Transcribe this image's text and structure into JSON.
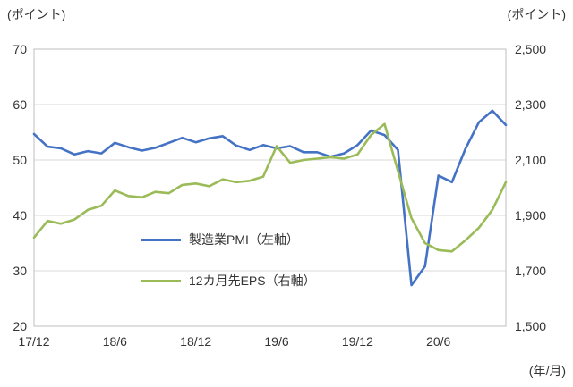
{
  "chart_data": {
    "type": "line",
    "title": "",
    "left_axis_label": "(ポイント)",
    "right_axis_label": "(ポイント)",
    "x_axis_unit": "(年/月)",
    "grid": "horizontal",
    "legend_position": "inside-center-left",
    "categories": [
      "17/12",
      "18/1",
      "18/2",
      "18/3",
      "18/4",
      "18/5",
      "18/6",
      "18/7",
      "18/8",
      "18/9",
      "18/10",
      "18/11",
      "18/12",
      "19/1",
      "19/2",
      "19/3",
      "19/4",
      "19/5",
      "19/6",
      "19/7",
      "19/8",
      "19/9",
      "19/10",
      "19/11",
      "19/12",
      "20/1",
      "20/2",
      "20/3",
      "20/4",
      "20/5",
      "20/6",
      "20/7",
      "20/8",
      "20/9",
      "20/10",
      "20/11"
    ],
    "x_tick_labels": [
      "17/12",
      "18/6",
      "18/12",
      "19/6",
      "19/12",
      "20/6"
    ],
    "left_axis": {
      "min": 20,
      "max": 70,
      "ticks": [
        20,
        30,
        40,
        50,
        60,
        70
      ],
      "tick_labels": [
        "20",
        "30",
        "40",
        "50",
        "60",
        "70"
      ]
    },
    "right_axis": {
      "min": 1500,
      "max": 2500,
      "ticks": [
        1500,
        1700,
        1900,
        2100,
        2300,
        2500
      ],
      "tick_labels": [
        "1,500",
        "1,700",
        "1,900",
        "2,100",
        "2,300",
        "2,500"
      ]
    },
    "series": [
      {
        "name": "製造業PMI（左軸）",
        "axis": "left",
        "color": "#4472C4",
        "values": [
          54.7,
          52.4,
          52.1,
          51.0,
          51.6,
          51.2,
          53.1,
          52.3,
          51.7,
          52.2,
          53.1,
          54.0,
          53.2,
          53.9,
          54.3,
          52.6,
          51.8,
          52.7,
          52.1,
          52.5,
          51.4,
          51.4,
          50.6,
          51.2,
          52.7,
          55.3,
          54.5,
          51.8,
          27.4,
          30.8,
          47.2,
          46.0,
          52.0,
          56.8,
          58.9,
          56.3
        ]
      },
      {
        "name": "12カ月先EPS（右軸）",
        "axis": "right",
        "color": "#9BBB59",
        "values": [
          1820,
          1880,
          1870,
          1885,
          1920,
          1935,
          1990,
          1970,
          1965,
          1985,
          1980,
          2010,
          2015,
          2005,
          2030,
          2020,
          2025,
          2040,
          2150,
          2090,
          2100,
          2105,
          2110,
          2105,
          2120,
          2190,
          2230,
          2060,
          1890,
          1800,
          1775,
          1770,
          1810,
          1855,
          1920,
          2020
        ]
      }
    ],
    "colors": {
      "grid": "#d9d9d9",
      "border": "#bfbfbf",
      "text": "#333333"
    }
  }
}
